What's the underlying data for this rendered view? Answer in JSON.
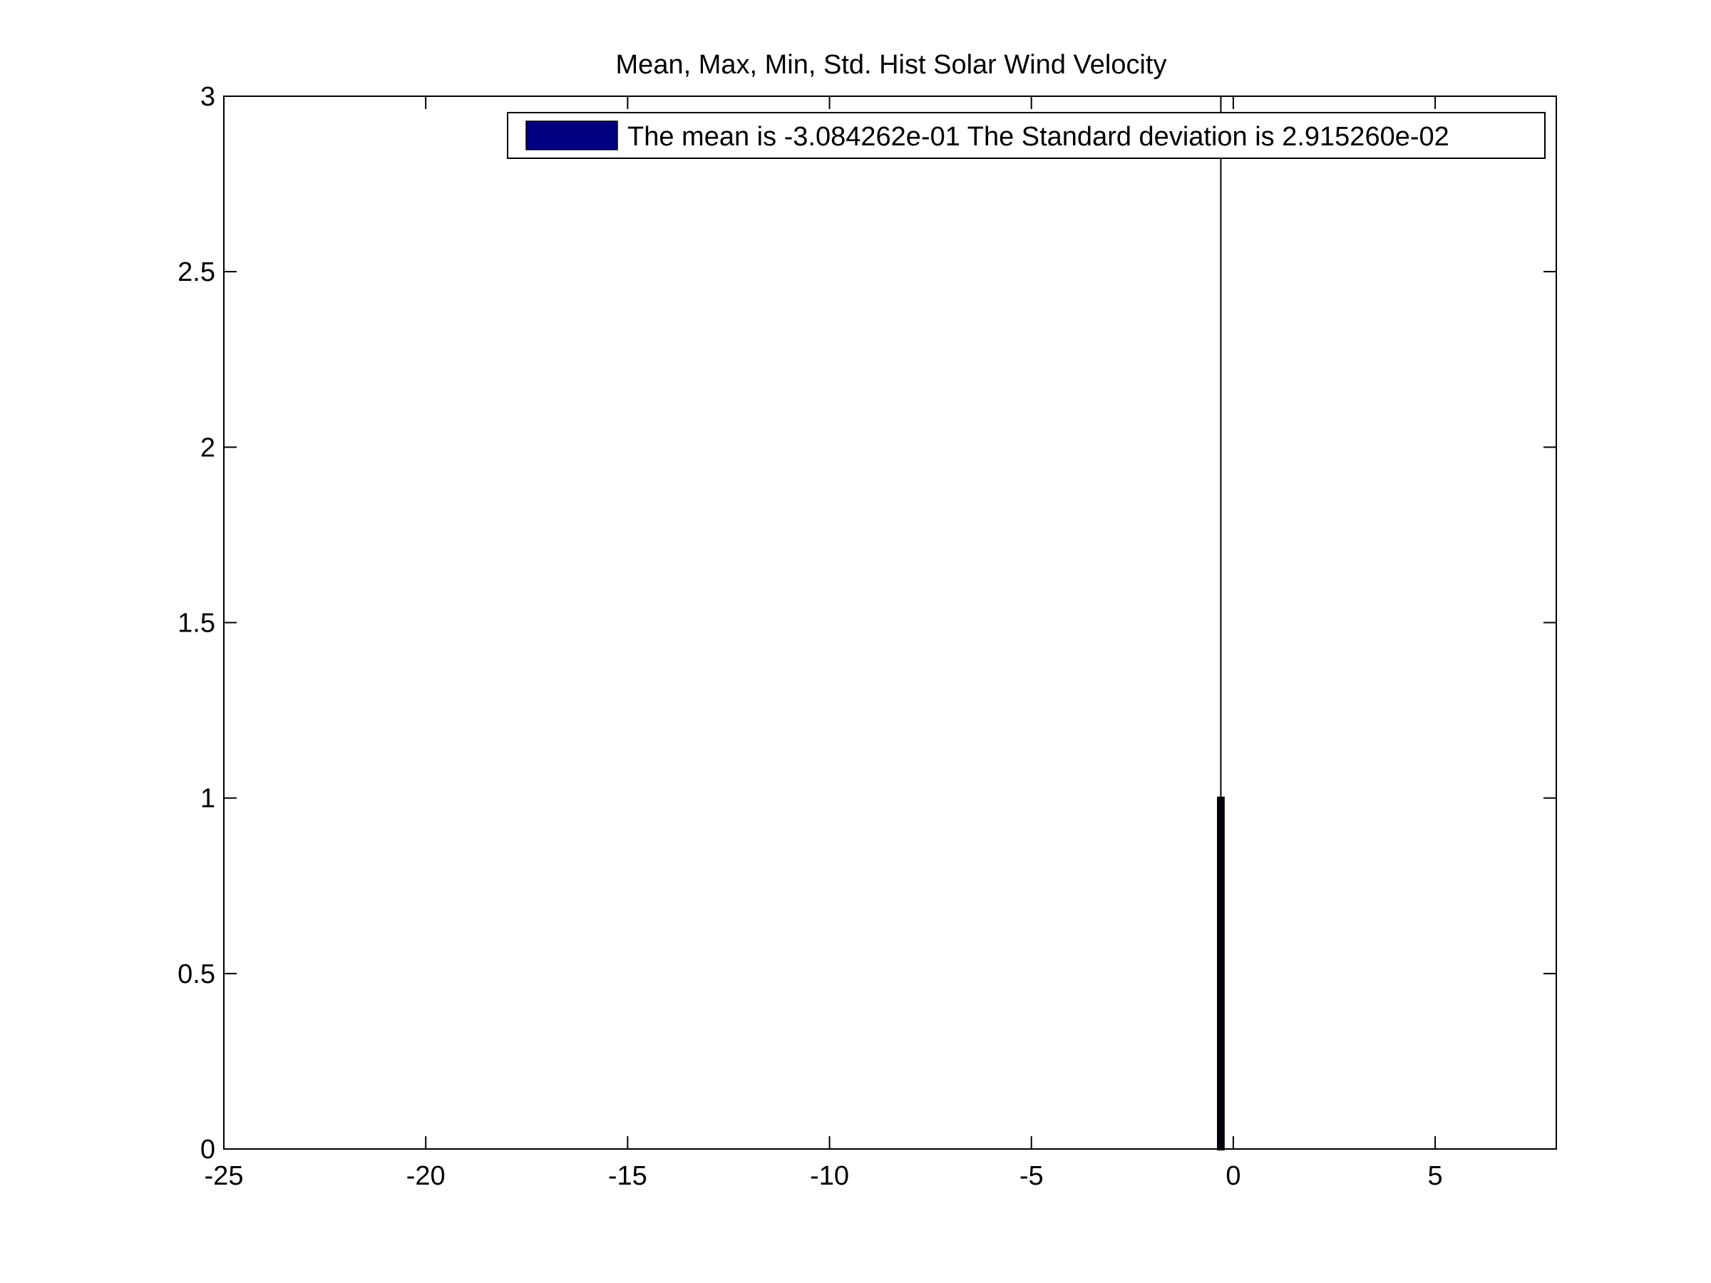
{
  "chart_data": {
    "type": "bar",
    "title": "Mean, Max, Min, Std.   Hist Solar Wind Velocity",
    "xlabel": "",
    "ylabel": "",
    "xlim": [
      -25,
      8
    ],
    "ylim": [
      0,
      3
    ],
    "x_ticks": [
      -25,
      -20,
      -15,
      -10,
      -5,
      0,
      5
    ],
    "y_ticks": [
      0,
      0.5,
      1,
      1.5,
      2,
      2.5,
      3
    ],
    "x_tick_labels": [
      "-25",
      "-20",
      "-15",
      "-10",
      "-5",
      "0",
      "5"
    ],
    "y_tick_labels": [
      "0",
      "0.5",
      "1",
      "1.5",
      "2",
      "2.5",
      "3"
    ],
    "grid": false,
    "legend_position": "top-right",
    "legend_label": "The mean is -3.084262e-01   The Standard deviation is 2.915260e-02",
    "series": [
      {
        "name": "The mean is -3.084262e-01   The Standard deviation is 2.915260e-02",
        "color": "#000080",
        "bins": [
          {
            "x": -0.3084,
            "width": 0.12,
            "value": 1
          }
        ]
      }
    ],
    "reference_line": {
      "x": -0.3084,
      "color": "#000000"
    }
  }
}
